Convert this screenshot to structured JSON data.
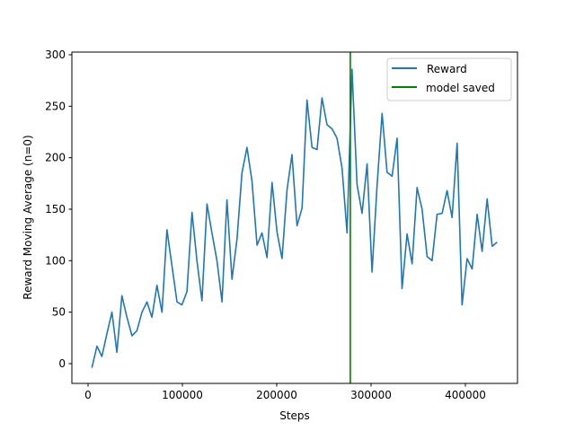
{
  "chart_data": {
    "type": "line",
    "title": "",
    "xlabel": "Steps",
    "ylabel": "Reward Moving Average (n=0)",
    "xlim": [
      -17143,
      455238
    ],
    "ylim": [
      -19.2,
      302.6
    ],
    "xticks": [
      0,
      100000,
      200000,
      300000,
      400000
    ],
    "xtick_labels": [
      "0",
      "100000",
      "200000",
      "300000",
      "400000"
    ],
    "yticks": [
      0,
      50,
      100,
      150,
      200,
      250,
      300
    ],
    "ytick_labels": [
      "0",
      "50",
      "100",
      "150",
      "200",
      "250",
      "300"
    ],
    "grid": false,
    "legend_placement": "top-right",
    "series": [
      {
        "name": "Reward",
        "color": "#1f77b4",
        "x_start": 4100,
        "x_step": 5303,
        "values": [
          -4,
          17,
          7,
          29,
          50,
          11,
          66,
          45,
          27,
          32,
          50,
          60,
          45,
          76,
          50,
          130,
          95,
          60,
          57,
          70,
          147,
          100,
          61,
          155,
          127,
          100,
          60,
          159,
          82,
          121,
          185,
          210,
          177,
          115,
          127,
          103,
          176,
          128,
          102,
          169,
          203,
          134,
          151,
          256,
          210,
          208,
          258,
          232,
          228,
          219,
          190,
          127,
          286,
          174,
          146,
          194,
          89,
          173,
          243,
          186,
          182,
          219,
          73,
          126,
          97,
          171,
          150,
          104,
          100,
          145,
          146,
          168,
          142,
          214,
          57,
          102,
          92,
          145,
          109,
          160,
          114,
          118
        ]
      }
    ],
    "vlines": [
      {
        "name": "model saved",
        "color": "#008000",
        "x": 278000
      }
    ]
  }
}
